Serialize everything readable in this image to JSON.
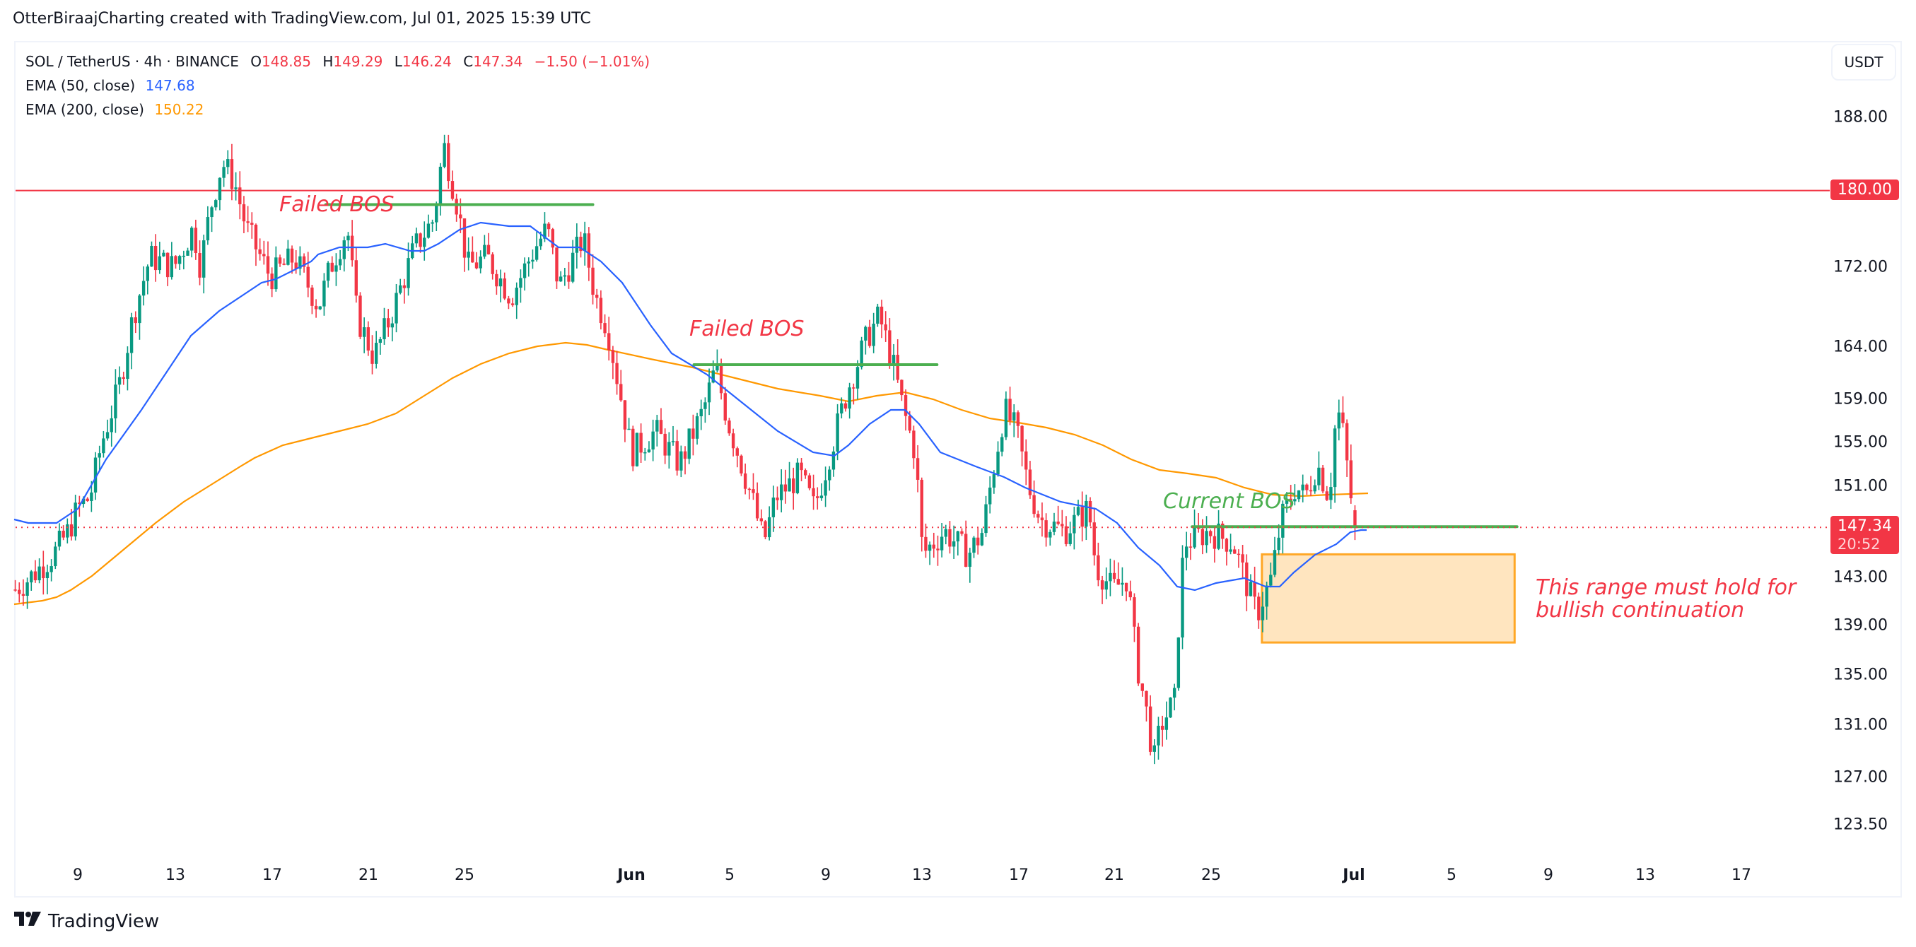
{
  "header": {
    "text": "OtterBiraajCharting created with TradingView.com, Jul 01, 2025 15:39 UTC"
  },
  "legend": {
    "symbol": "SOL / TetherUS · 4h · BINANCE",
    "open_k": "O",
    "open": "148.85",
    "high_k": "H",
    "high": "149.29",
    "low_k": "L",
    "low": "146.24",
    "close_k": "C",
    "close": "147.34",
    "change": "−1.50 (−1.01%)",
    "ema50_label": "EMA (50, close)",
    "ema50_value": "147.68",
    "ema200_label": "EMA (200, close)",
    "ema200_value": "150.22"
  },
  "currency_button": "USDT",
  "price_tags": {
    "resistance": "180.00",
    "last_price": "147.34",
    "countdown": "20:52"
  },
  "annotations": {
    "failed_bos_1": "Failed BOS",
    "failed_bos_2": "Failed BOS",
    "current_bos": "Current BOS",
    "range_line1": "This range must hold for",
    "range_line2": "bullish continuation"
  },
  "logo": {
    "text": "TradingView"
  },
  "colors": {
    "up": "#089981",
    "down": "#f23645",
    "ema50": "#2962ff",
    "ema200": "#ff9800",
    "bos_line": "#4caf50",
    "resistance": "#f23645",
    "range_fill": "#ffe5bf",
    "range_border": "#ffa726"
  },
  "chart_data": {
    "type": "candlestick",
    "title": "SOL / TetherUS · 4h · BINANCE",
    "scale": "log",
    "ylabel": "USDT",
    "y_ticks": [
      188.0,
      180.0,
      172.0,
      164.0,
      159.0,
      155.0,
      151.0,
      143.0,
      139.0,
      135.0,
      131.0,
      127.0,
      123.5
    ],
    "x_ticks": [
      "9",
      "13",
      "17",
      "21",
      "25",
      "Jun",
      "5",
      "9",
      "13",
      "17",
      "21",
      "25",
      "Jul",
      "5",
      "9",
      "13",
      "17"
    ],
    "ohlc_last": {
      "open": 148.85,
      "high": 149.29,
      "low": 146.24,
      "close": 147.34,
      "change": -1.5,
      "change_pct": -1.01
    },
    "indicators": [
      {
        "name": "EMA (50, close)",
        "last": 147.68,
        "color": "#2962ff"
      },
      {
        "name": "EMA (200, close)",
        "last": 150.22,
        "color": "#ff9800"
      }
    ],
    "price_path_waypoints": {
      "note_days": "days since May 1 (Jun 1 = 31, Jul 1 = 61)",
      "points": [
        [
          5.4,
          142
        ],
        [
          6,
          143
        ],
        [
          7,
          145
        ],
        [
          7.6,
          147
        ],
        [
          8,
          149
        ],
        [
          8.5,
          150
        ],
        [
          9,
          155
        ],
        [
          9.7,
          160
        ],
        [
          10.3,
          167
        ],
        [
          11,
          173
        ],
        [
          12,
          172
        ],
        [
          12.8,
          176
        ],
        [
          13.1,
          172
        ],
        [
          13.5,
          178
        ],
        [
          14,
          183
        ],
        [
          14.5,
          181
        ],
        [
          15,
          176
        ],
        [
          16,
          171
        ],
        [
          17,
          173
        ],
        [
          18,
          168
        ],
        [
          18.5,
          172
        ],
        [
          19.2,
          176
        ],
        [
          19.6,
          167
        ],
        [
          20.3,
          163
        ],
        [
          21,
          167
        ],
        [
          22,
          174
        ],
        [
          22.8,
          177
        ],
        [
          23.2,
          185
        ],
        [
          23.8,
          178
        ],
        [
          24.2,
          172
        ],
        [
          25,
          173
        ],
        [
          26,
          169
        ],
        [
          27,
          174
        ],
        [
          27.5,
          176
        ],
        [
          28,
          170
        ],
        [
          29,
          175
        ],
        [
          29.5,
          169
        ],
        [
          30,
          166
        ],
        [
          30.5,
          160
        ],
        [
          31,
          154
        ],
        [
          32,
          156
        ],
        [
          33,
          153
        ],
        [
          34,
          158
        ],
        [
          34.5,
          162
        ],
        [
          35,
          157
        ],
        [
          36,
          150
        ],
        [
          36.5,
          146
        ],
        [
          37,
          150
        ],
        [
          38,
          152
        ],
        [
          38.6,
          149
        ],
        [
          39,
          152
        ],
        [
          40,
          160
        ],
        [
          40.8,
          165
        ],
        [
          41.3,
          167
        ],
        [
          41.8,
          163
        ],
        [
          42.3,
          158
        ],
        [
          42.8,
          154
        ],
        [
          43.1,
          145
        ],
        [
          44,
          147
        ],
        [
          45,
          145
        ],
        [
          45.6,
          147
        ],
        [
          46,
          152
        ],
        [
          46.5,
          158
        ],
        [
          47,
          156
        ],
        [
          47.5,
          151
        ],
        [
          48,
          148
        ],
        [
          49,
          147
        ],
        [
          50,
          149
        ],
        [
          50.3,
          144
        ],
        [
          51,
          142
        ],
        [
          51.6,
          143
        ],
        [
          52,
          136
        ],
        [
          52.5,
          131
        ],
        [
          52.7,
          128
        ],
        [
          53,
          131
        ],
        [
          53.6,
          133
        ],
        [
          53.8,
          142
        ],
        [
          54,
          146
        ],
        [
          55,
          147
        ],
        [
          56,
          146
        ],
        [
          56.8,
          141
        ],
        [
          57,
          140
        ],
        [
          57.6,
          143
        ],
        [
          58,
          148
        ],
        [
          58.6,
          151
        ],
        [
          59,
          150
        ],
        [
          59.5,
          153
        ],
        [
          60,
          150
        ],
        [
          60.3,
          158
        ],
        [
          60.5,
          157
        ],
        [
          60.9,
          150
        ],
        [
          61.1,
          147.34
        ]
      ]
    },
    "extremes": {
      "high": 188.5,
      "high_date": "May 23",
      "low": 126.0,
      "low_date": "Jun 22"
    },
    "horizontal_levels": [
      {
        "type": "resistance",
        "price": 180.0,
        "color": "#f23645"
      },
      {
        "type": "failed_bos",
        "price": 178.5,
        "from_day": 18.3,
        "to_day": 29.4,
        "label": "Failed BOS"
      },
      {
        "type": "failed_bos",
        "price": 162.3,
        "from_day": 33.6,
        "to_day": 43.7,
        "label": "Failed BOS"
      },
      {
        "type": "current_bos",
        "price": 147.4,
        "from_day": 54.3,
        "to_day": 67.8,
        "label": "Current BOS"
      }
    ],
    "range_box": {
      "top": 145.0,
      "bottom": 137.6,
      "from_day": 57.2,
      "to_day": 67.7,
      "label": "This range must hold for bullish continuation"
    }
  }
}
